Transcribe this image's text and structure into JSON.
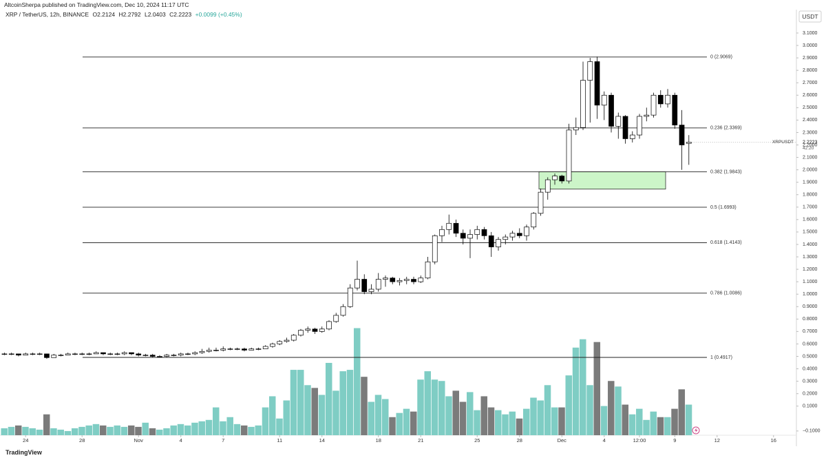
{
  "header": {
    "publisher": "AltcoinSherpa published on TradingView.com, Dec 10, 2024 11:17 UTC"
  },
  "footer": {
    "brand": "TradingView"
  },
  "chart_data": {
    "type": "candlestick",
    "title": "XRP / TetherUS, 12h, BINANCE",
    "ohlc_legend": [
      "O2.2124",
      "H2.2792",
      "L2.0403",
      "C2.2223"
    ],
    "change": "+0.0099 (+0.45%)",
    "symbol": "XRPUSDT",
    "currency": "USDT",
    "countdown": "42:20",
    "up_color": "#ffffff",
    "down_color": "#000000",
    "wick_color": "#000000",
    "volume_up_color": "#7fcdc4",
    "volume_down_color": "#7b7b7b",
    "fib_color": "#222222",
    "zone_color": "#ccf5c8",
    "open": [
      0.52,
      0.52,
      0.52,
      0.51,
      0.52,
      0.52,
      0.52,
      0.49,
      0.51,
      0.51,
      0.52,
      0.52,
      0.52,
      0.52,
      0.53,
      0.52,
      0.52,
      0.52,
      0.53,
      0.52,
      0.51,
      0.51,
      0.5,
      0.5,
      0.51,
      0.51,
      0.52,
      0.52,
      0.53,
      0.54,
      0.55,
      0.55,
      0.56,
      0.56,
      0.56,
      0.55,
      0.56,
      0.56,
      0.58,
      0.6,
      0.62,
      0.63,
      0.67,
      0.71,
      0.72,
      0.7,
      0.72,
      0.78,
      0.83,
      0.9,
      1.05,
      1.12,
      1.02,
      1.04,
      1.12,
      1.13,
      1.1,
      1.11,
      1.12,
      1.1,
      1.13,
      1.26,
      1.47,
      1.52,
      1.57,
      1.49,
      1.45,
      1.48,
      1.52,
      1.47,
      1.38,
      1.44,
      1.46,
      1.49,
      1.47,
      1.54,
      1.65,
      1.82,
      1.92,
      1.95,
      1.91,
      2.32,
      2.34,
      2.72,
      2.87,
      2.52,
      2.6,
      2.35,
      2.43,
      2.25,
      2.28,
      2.43,
      2.44,
      2.6,
      2.53,
      2.6,
      2.36,
      2.2124
    ],
    "high": [
      0.53,
      0.53,
      0.52,
      0.53,
      0.53,
      0.53,
      0.52,
      0.52,
      0.52,
      0.53,
      0.53,
      0.53,
      0.53,
      0.54,
      0.53,
      0.53,
      0.53,
      0.54,
      0.53,
      0.53,
      0.52,
      0.52,
      0.51,
      0.52,
      0.52,
      0.53,
      0.53,
      0.54,
      0.56,
      0.57,
      0.57,
      0.58,
      0.57,
      0.57,
      0.57,
      0.57,
      0.57,
      0.59,
      0.61,
      0.63,
      0.65,
      0.68,
      0.72,
      0.74,
      0.73,
      0.74,
      0.79,
      0.85,
      0.92,
      1.08,
      1.27,
      1.16,
      1.08,
      1.17,
      1.15,
      1.14,
      1.13,
      1.14,
      1.14,
      1.15,
      1.3,
      1.48,
      1.55,
      1.64,
      1.6,
      1.52,
      1.52,
      1.55,
      1.54,
      1.5,
      1.46,
      1.48,
      1.51,
      1.53,
      1.56,
      1.66,
      1.85,
      1.94,
      1.97,
      1.96,
      2.37,
      2.42,
      2.87,
      2.9,
      2.91,
      2.63,
      2.62,
      2.46,
      2.44,
      2.31,
      2.45,
      2.5,
      2.62,
      2.64,
      2.65,
      2.62,
      2.48,
      2.2792
    ],
    "low": [
      0.51,
      0.51,
      0.5,
      0.51,
      0.51,
      0.51,
      0.48,
      0.49,
      0.5,
      0.51,
      0.51,
      0.51,
      0.51,
      0.52,
      0.51,
      0.51,
      0.51,
      0.51,
      0.51,
      0.5,
      0.5,
      0.49,
      0.49,
      0.49,
      0.5,
      0.5,
      0.51,
      0.51,
      0.52,
      0.53,
      0.54,
      0.54,
      0.55,
      0.55,
      0.54,
      0.55,
      0.55,
      0.56,
      0.57,
      0.59,
      0.61,
      0.62,
      0.66,
      0.69,
      0.68,
      0.69,
      0.71,
      0.77,
      0.82,
      0.89,
      1.03,
      1.0,
      1.0,
      1.02,
      1.06,
      1.08,
      1.07,
      1.08,
      1.08,
      1.09,
      1.12,
      1.24,
      1.42,
      1.48,
      1.46,
      1.4,
      1.29,
      1.44,
      1.44,
      1.3,
      1.35,
      1.4,
      1.43,
      1.45,
      1.43,
      1.52,
      1.63,
      1.76,
      1.88,
      1.89,
      1.89,
      2.28,
      2.32,
      2.38,
      2.41,
      2.4,
      2.3,
      2.25,
      2.21,
      2.22,
      2.25,
      2.39,
      2.42,
      2.5,
      2.5,
      2.33,
      2.0,
      2.0403
    ],
    "close": [
      0.52,
      0.52,
      0.51,
      0.52,
      0.52,
      0.52,
      0.49,
      0.51,
      0.51,
      0.52,
      0.52,
      0.52,
      0.52,
      0.53,
      0.52,
      0.52,
      0.52,
      0.53,
      0.52,
      0.51,
      0.51,
      0.5,
      0.5,
      0.51,
      0.51,
      0.52,
      0.52,
      0.53,
      0.54,
      0.55,
      0.55,
      0.56,
      0.56,
      0.56,
      0.55,
      0.56,
      0.56,
      0.58,
      0.6,
      0.62,
      0.63,
      0.67,
      0.71,
      0.72,
      0.7,
      0.72,
      0.78,
      0.83,
      0.9,
      1.05,
      1.12,
      1.02,
      1.04,
      1.12,
      1.13,
      1.1,
      1.11,
      1.12,
      1.1,
      1.13,
      1.26,
      1.47,
      1.52,
      1.57,
      1.49,
      1.45,
      1.48,
      1.52,
      1.47,
      1.38,
      1.44,
      1.46,
      1.49,
      1.47,
      1.54,
      1.65,
      1.82,
      1.92,
      1.95,
      1.91,
      2.32,
      2.34,
      2.72,
      2.87,
      2.52,
      2.6,
      2.35,
      2.43,
      2.25,
      2.28,
      2.43,
      2.44,
      2.6,
      2.53,
      2.6,
      2.36,
      2.2,
      2.2223
    ],
    "volume": [
      10,
      12,
      14,
      12,
      10,
      8,
      30,
      10,
      8,
      6,
      10,
      12,
      14,
      16,
      14,
      12,
      14,
      12,
      14,
      12,
      18,
      10,
      8,
      10,
      14,
      16,
      14,
      18,
      20,
      22,
      40,
      20,
      26,
      16,
      14,
      12,
      14,
      40,
      56,
      24,
      50,
      94,
      94,
      72,
      68,
      58,
      104,
      64,
      92,
      94,
      154,
      84,
      48,
      58,
      52,
      26,
      32,
      38,
      34,
      80,
      92,
      80,
      78,
      56,
      64,
      48,
      62,
      36,
      56,
      40,
      36,
      30,
      34,
      24,
      38,
      54,
      50,
      72,
      40,
      40,
      86,
      126,
      138,
      72,
      134,
      42,
      78,
      70,
      44,
      30,
      38,
      22,
      34,
      26,
      26,
      38,
      66,
      44
    ],
    "volume_lim": [
      0,
      612
    ],
    "xlim": [
      -0.63,
      112.24
    ],
    "xticks": [
      {
        "value": 3,
        "label": "24"
      },
      {
        "value": 11,
        "label": "28"
      },
      {
        "value": 19,
        "label": "Nov"
      },
      {
        "value": 25,
        "label": "4"
      },
      {
        "value": 31,
        "label": "7"
      },
      {
        "value": 39,
        "label": "11"
      },
      {
        "value": 45,
        "label": "14"
      },
      {
        "value": 53,
        "label": "18"
      },
      {
        "value": 59,
        "label": "21"
      },
      {
        "value": 67,
        "label": "25"
      },
      {
        "value": 73,
        "label": "28"
      },
      {
        "value": 79,
        "label": "Dec"
      },
      {
        "value": 85,
        "label": "4"
      },
      {
        "value": 90,
        "label": "12:00"
      },
      {
        "value": 95,
        "label": "9"
      },
      {
        "value": 101,
        "label": "12"
      },
      {
        "value": 109,
        "label": "16"
      }
    ],
    "ylim": [
      -0.134,
      3.288
    ],
    "yticks": [
      {
        "value": 3.1,
        "label": "3.1000"
      },
      {
        "value": 3.0,
        "label": "3.0000"
      },
      {
        "value": 2.9,
        "label": "2.9000"
      },
      {
        "value": 2.8,
        "label": "2.8000"
      },
      {
        "value": 2.7,
        "label": "2.7000"
      },
      {
        "value": 2.6,
        "label": "2.6000"
      },
      {
        "value": 2.5,
        "label": "2.5000"
      },
      {
        "value": 2.4,
        "label": "2.4000"
      },
      {
        "value": 2.3,
        "label": "2.3000"
      },
      {
        "value": 2.2,
        "label": "2.2000"
      },
      {
        "value": 2.1,
        "label": "2.1000"
      },
      {
        "value": 2.0,
        "label": "2.0000"
      },
      {
        "value": 1.9,
        "label": "1.9000"
      },
      {
        "value": 1.8,
        "label": "1.8000"
      },
      {
        "value": 1.7,
        "label": "1.7000"
      },
      {
        "value": 1.6,
        "label": "1.6000"
      },
      {
        "value": 1.5,
        "label": "1.5000"
      },
      {
        "value": 1.4,
        "label": "1.4000"
      },
      {
        "value": 1.3,
        "label": "1.3000"
      },
      {
        "value": 1.2,
        "label": "1.2000"
      },
      {
        "value": 1.1,
        "label": "1.1000"
      },
      {
        "value": 1.0,
        "label": "1.0000"
      },
      {
        "value": 0.9,
        "label": "0.9000"
      },
      {
        "value": 0.8,
        "label": "0.8000"
      },
      {
        "value": 0.7,
        "label": "0.7000"
      },
      {
        "value": 0.6,
        "label": "0.6000"
      },
      {
        "value": 0.5,
        "label": "0.5000"
      },
      {
        "value": 0.4,
        "label": "0.4000"
      },
      {
        "value": 0.3,
        "label": "0.3000"
      },
      {
        "value": 0.2,
        "label": "0.2000"
      },
      {
        "value": 0.1,
        "label": "0.1000"
      },
      {
        "value": -0.1,
        "label": "−0.1000"
      }
    ],
    "fib_levels": [
      {
        "value": 2.9069,
        "label": "0 (2.9069)"
      },
      {
        "value": 2.3369,
        "label": "0.236 (2.3369)"
      },
      {
        "value": 1.9843,
        "label": "0.382 (1.9843)"
      },
      {
        "value": 1.6993,
        "label": "0.5 (1.6993)"
      },
      {
        "value": 1.4143,
        "label": "0.618 (1.4143)"
      },
      {
        "value": 1.0086,
        "label": "0.786 (1.0086)"
      },
      {
        "value": 0.4917,
        "label": "1 (0.4917)"
      }
    ],
    "zone": {
      "low": 1.845,
      "high": 1.985
    }
  }
}
